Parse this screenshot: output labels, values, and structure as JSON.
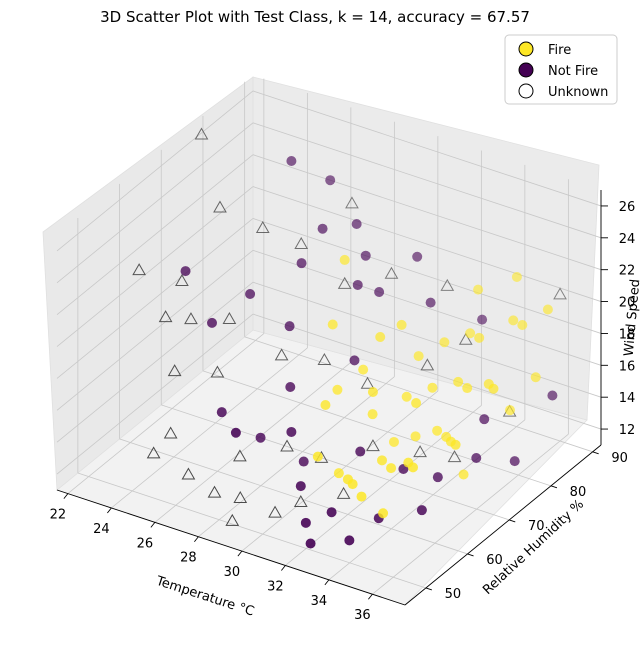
{
  "chart_data": {
    "type": "scatter",
    "projection": "3d",
    "title": "3D Scatter Plot with Test Class, k = 14, accuracy = 67.57",
    "xlabel": "Temperature °C",
    "ylabel": "Relative Humidity %",
    "zlabel": "Wind Speed",
    "x_ticks": [
      "22",
      "24",
      "26",
      "28",
      "30",
      "32",
      "34",
      "36"
    ],
    "y_ticks": [
      "50",
      "60",
      "70",
      "80",
      "90"
    ],
    "z_ticks": [
      "12",
      "14",
      "16",
      "18",
      "20",
      "22",
      "24",
      "26"
    ],
    "xlim": [
      21.5,
      37.5
    ],
    "ylim": [
      45,
      92
    ],
    "zlim": [
      11,
      27
    ],
    "grid": true,
    "legend_position": "top-right",
    "legend": [
      {
        "label": "Fire",
        "color": "#fde725",
        "marker": "circle"
      },
      {
        "label": "Not Fire",
        "color": "#440154",
        "marker": "circle"
      },
      {
        "label": "Unknown",
        "color": "#ffffff",
        "marker": "circle"
      }
    ],
    "series": [
      {
        "name": "Fire",
        "color": "#fde725",
        "marker": "circle",
        "points": [
          [
            31.2,
            62,
            12.8
          ],
          [
            32.0,
            60,
            13.2
          ],
          [
            32.6,
            58,
            13.6
          ],
          [
            33.2,
            57,
            13.3
          ],
          [
            32.8,
            64,
            13.9
          ],
          [
            33.6,
            62,
            14.2
          ],
          [
            34.2,
            63,
            14.6
          ],
          [
            34.8,
            61,
            15.0
          ],
          [
            32.2,
            70,
            13.5
          ],
          [
            33.0,
            71,
            14.0
          ],
          [
            33.8,
            72,
            14.5
          ],
          [
            34.6,
            70,
            14.9
          ],
          [
            35.2,
            68,
            15.3
          ],
          [
            35.8,
            66,
            15.8
          ],
          [
            31.6,
            68,
            15.4
          ],
          [
            32.4,
            72,
            16.0
          ],
          [
            33.2,
            74,
            16.5
          ],
          [
            34.0,
            76,
            16.8
          ],
          [
            34.8,
            74,
            17.2
          ],
          [
            35.6,
            75,
            17.6
          ],
          [
            36.2,
            73,
            18.0
          ],
          [
            31.8,
            78,
            17.0
          ],
          [
            32.6,
            80,
            17.8
          ],
          [
            33.4,
            82,
            18.3
          ],
          [
            34.2,
            80,
            18.8
          ],
          [
            35.0,
            84,
            19.4
          ],
          [
            35.8,
            82,
            19.9
          ],
          [
            36.4,
            85,
            20.5
          ],
          [
            30.8,
            74,
            18.6
          ],
          [
            31.4,
            76,
            19.2
          ],
          [
            33.0,
            86,
            20.0
          ],
          [
            34.4,
            88,
            21.0
          ],
          [
            29.6,
            70,
            15.6
          ],
          [
            30.4,
            72,
            16.8
          ],
          [
            36.8,
            80,
            17.5
          ],
          [
            32.0,
            66,
            17.4
          ],
          [
            35.4,
            70,
            12.9
          ],
          [
            34.0,
            58,
            12.4
          ],
          [
            31.0,
            58,
            14.6
          ],
          [
            30.2,
            64,
            16.2
          ],
          [
            29.0,
            72,
            19.0
          ],
          [
            33.6,
            68,
            17.0
          ],
          [
            36.0,
            78,
            15.5
          ],
          [
            28.4,
            78,
            21.5
          ]
        ]
      },
      {
        "name": "Not Fire",
        "color": "#440154",
        "marker": "circle",
        "points": [
          [
            23.0,
            68,
            20.5
          ],
          [
            24.6,
            66,
            18.4
          ],
          [
            25.2,
            72,
            19.2
          ],
          [
            24.8,
            84,
            24.8
          ],
          [
            26.2,
            86,
            23.8
          ],
          [
            27.0,
            80,
            22.4
          ],
          [
            27.8,
            84,
            22.2
          ],
          [
            28.6,
            82,
            21.0
          ],
          [
            30.2,
            86,
            20.8
          ],
          [
            29.6,
            80,
            19.6
          ],
          [
            31.2,
            84,
            18.8
          ],
          [
            32.8,
            88,
            17.6
          ],
          [
            30.0,
            72,
            17.2
          ],
          [
            28.2,
            66,
            16.0
          ],
          [
            29.4,
            60,
            15.0
          ],
          [
            31.8,
            64,
            14.0
          ],
          [
            33.4,
            66,
            13.2
          ],
          [
            34.6,
            68,
            12.8
          ],
          [
            35.6,
            72,
            13.6
          ],
          [
            36.6,
            76,
            13.0
          ],
          [
            26.2,
            60,
            14.8
          ],
          [
            27.6,
            62,
            13.4
          ],
          [
            29.2,
            64,
            12.2
          ],
          [
            30.6,
            56,
            13.0
          ],
          [
            32.4,
            54,
            12.6
          ],
          [
            33.8,
            58,
            12.0
          ],
          [
            35.4,
            60,
            12.8
          ],
          [
            28.0,
            54,
            15.6
          ],
          [
            31.6,
            52,
            12.0
          ],
          [
            32.2,
            50,
            11.4
          ],
          [
            33.6,
            52,
            11.8
          ],
          [
            35.2,
            76,
            15.0
          ],
          [
            36.8,
            84,
            15.5
          ],
          [
            26.8,
            76,
            21.0
          ],
          [
            29.0,
            78,
            20.2
          ],
          [
            27.4,
            70,
            18.6
          ]
        ]
      },
      {
        "name": "Unknown",
        "color": "#ffffff",
        "marker": "triangle",
        "points": [
          [
            22.2,
            76,
            27.0
          ],
          [
            24.2,
            70,
            24.6
          ],
          [
            25.4,
            74,
            23.0
          ],
          [
            22.4,
            60,
            22.0
          ],
          [
            23.6,
            64,
            21.0
          ],
          [
            24.0,
            58,
            20.2
          ],
          [
            24.4,
            62,
            19.4
          ],
          [
            25.4,
            66,
            19.0
          ],
          [
            24.8,
            56,
            17.6
          ],
          [
            26.0,
            60,
            17.2
          ],
          [
            26.4,
            78,
            21.6
          ],
          [
            27.2,
            86,
            22.8
          ],
          [
            28.4,
            78,
            20.0
          ],
          [
            29.4,
            84,
            19.8
          ],
          [
            31.2,
            88,
            19.0
          ],
          [
            27.8,
            66,
            17.8
          ],
          [
            29.0,
            70,
            17.2
          ],
          [
            30.6,
            72,
            16.0
          ],
          [
            32.2,
            78,
            16.6
          ],
          [
            33.2,
            82,
            17.8
          ],
          [
            36.0,
            90,
            20.2
          ],
          [
            35.6,
            80,
            14.8
          ],
          [
            25.0,
            54,
            14.2
          ],
          [
            26.2,
            52,
            12.6
          ],
          [
            27.8,
            56,
            13.6
          ],
          [
            29.2,
            60,
            14.0
          ],
          [
            30.4,
            62,
            13.4
          ],
          [
            32.0,
            66,
            14.0
          ],
          [
            33.4,
            70,
            13.4
          ],
          [
            34.6,
            72,
            13.2
          ],
          [
            27.4,
            52,
            12.0
          ],
          [
            28.2,
            54,
            11.6
          ],
          [
            29.8,
            54,
            11.4
          ],
          [
            30.6,
            56,
            12.0
          ],
          [
            31.8,
            60,
            12.2
          ],
          [
            28.6,
            50,
            11.2
          ],
          [
            24.6,
            52,
            13.2
          ]
        ]
      }
    ]
  }
}
